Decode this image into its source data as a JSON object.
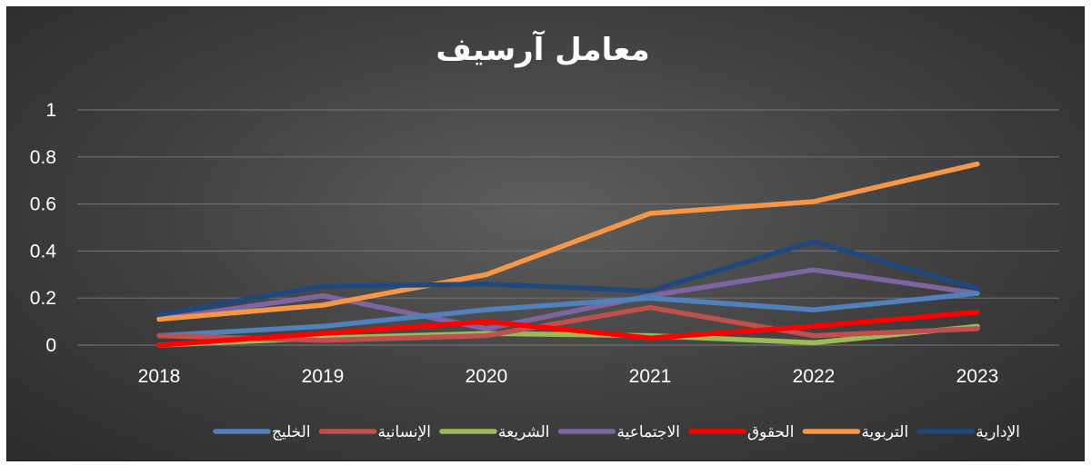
{
  "chart_data": {
    "type": "line",
    "title": "معامل آرسيف",
    "xlabel": "",
    "ylabel": "",
    "x": [
      "2018",
      "2019",
      "2020",
      "2021",
      "2022",
      "2023"
    ],
    "yticks": [
      "0",
      "0.2",
      "0.4",
      "0.6",
      "0.8",
      "1"
    ],
    "ylim": [
      0,
      1
    ],
    "grid": true,
    "legend_position": "bottom",
    "series": [
      {
        "name": "الخليج",
        "color": "#4f81bd",
        "values": [
          0.04,
          0.08,
          0.15,
          0.2,
          0.15,
          0.22
        ]
      },
      {
        "name": "الإنسانية",
        "color": "#c0504d",
        "values": [
          0.04,
          0.02,
          0.04,
          0.16,
          0.04,
          0.07
        ]
      },
      {
        "name": "الشريعة",
        "color": "#9bbb59",
        "values": [
          0.0,
          0.03,
          0.05,
          0.04,
          0.01,
          0.08
        ]
      },
      {
        "name": "الاجتماعية",
        "color": "#8064a2",
        "values": [
          0.11,
          0.21,
          0.07,
          0.21,
          0.32,
          0.22
        ]
      },
      {
        "name": "الحقوق",
        "color": "#ff0000",
        "values": [
          0.0,
          0.05,
          0.1,
          0.03,
          0.08,
          0.14
        ]
      },
      {
        "name": "التربوية",
        "color": "#f79646",
        "values": [
          0.11,
          0.17,
          0.3,
          0.56,
          0.61,
          0.77
        ]
      },
      {
        "name": "الإدارية",
        "color": "#1f497d",
        "values": [
          0.13,
          0.25,
          0.26,
          0.23,
          0.44,
          0.24
        ]
      }
    ],
    "draw_order": [
      3,
      2,
      0,
      1,
      5,
      6,
      4
    ]
  }
}
